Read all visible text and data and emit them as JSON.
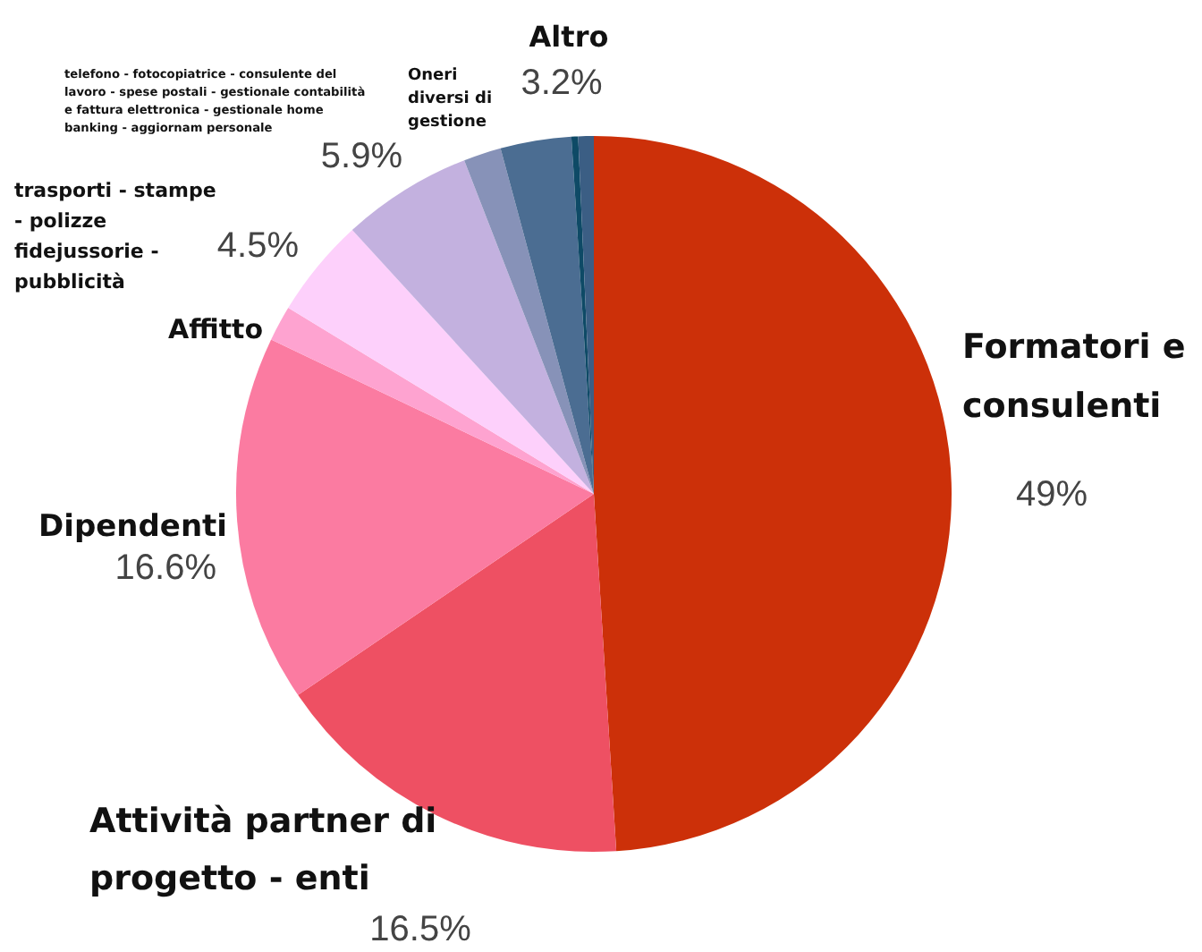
{
  "chart_data": {
    "type": "pie",
    "categories": [
      "Formatori e consulenti",
      "Attività partner di progetto - enti",
      "Dipendenti",
      "Affitto",
      "trasporti - stampe - polizze fidejussorie - pubblicità",
      "telefono - fotocopiatrice - consulente del lavoro - spese postali - gestionale contabilità e fattura elettronica - gestionale home banking - aggiornam personale",
      "Oneri diversi di gestione",
      "Altro",
      null,
      null
    ],
    "values": [
      49,
      16.5,
      16.6,
      1.6,
      4.5,
      5.9,
      1.7,
      3.2,
      0.3,
      0.7
    ],
    "value_labels": [
      "49%",
      "16.5%",
      "16.6%",
      null,
      "4.5%",
      "5.9%",
      null,
      "3.2%",
      null,
      null
    ],
    "colors": [
      "#cc3009",
      "#ee5063",
      "#fb7ba1",
      "#fea3d0",
      "#fdd0fb",
      "#c3b1df",
      "#8792b8",
      "#4b6d92",
      "#0e4a66",
      "#3b5e84"
    ],
    "legend": false
  }
}
